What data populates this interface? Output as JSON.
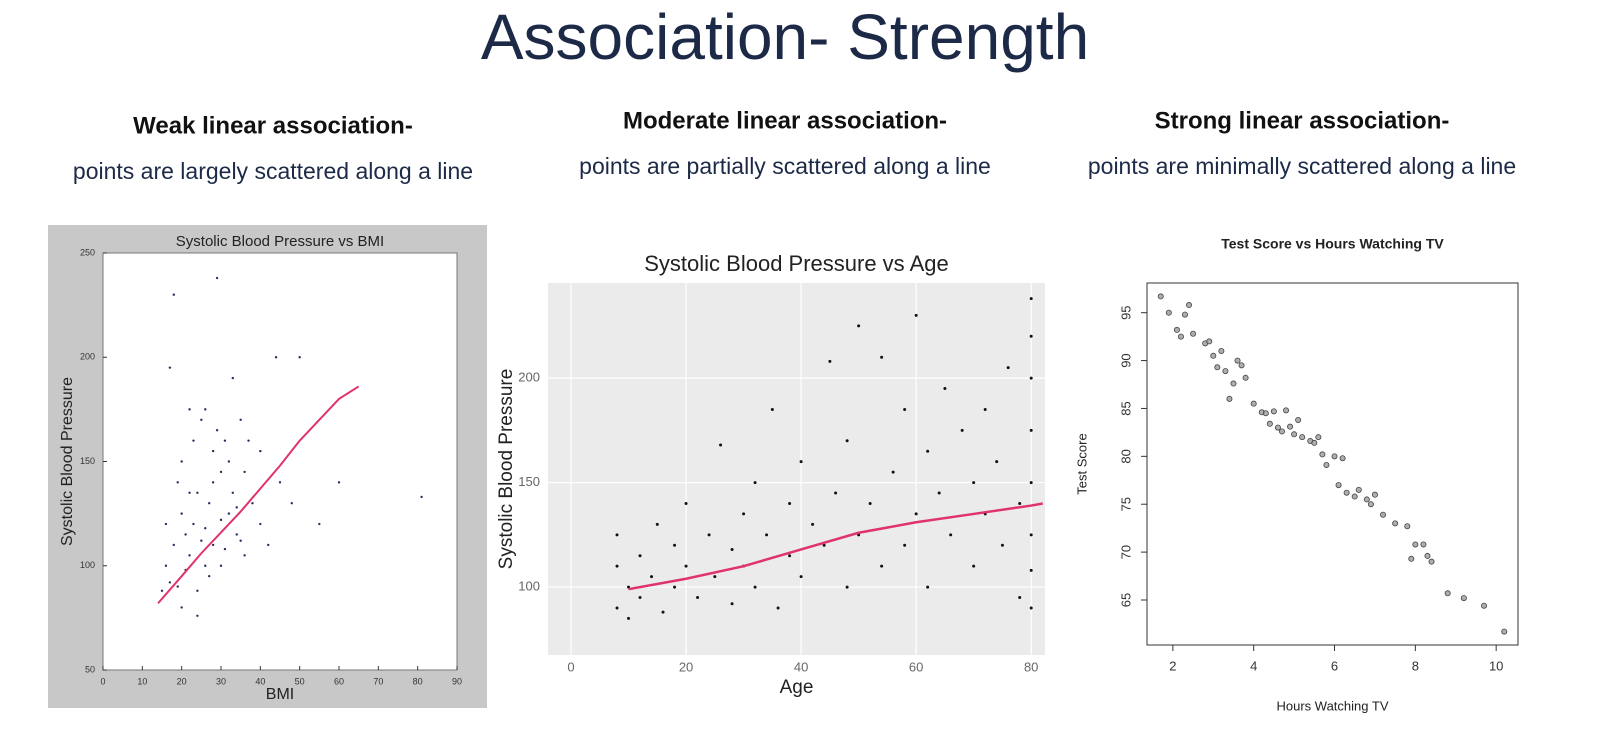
{
  "title": "Association- Strength",
  "panels": [
    {
      "heading": "Weak linear association-",
      "description": "points are largely scattered along a line"
    },
    {
      "heading": "Moderate linear association-",
      "description": "points are partially scattered along a line"
    },
    {
      "heading": "Strong linear association-",
      "description": "points are minimally scattered along a line"
    }
  ],
  "chart_data": [
    {
      "type": "scatter",
      "title": "Systolic Blood Pressure vs BMI",
      "xlabel": "BMI",
      "ylabel": "Systolic Blood Pressure",
      "xlim": [
        0,
        90
      ],
      "ylim": [
        50,
        250
      ],
      "xticks": [
        0,
        10,
        20,
        30,
        40,
        50,
        60,
        70,
        80,
        90
      ],
      "yticks": [
        50,
        100,
        150,
        200,
        250
      ],
      "grid": false,
      "series": [
        {
          "type": "scatter",
          "color": "#2e2e5e",
          "x": [
            16,
            18,
            20,
            22,
            24,
            26,
            28,
            30,
            32,
            34,
            36,
            38,
            40,
            17,
            19,
            21,
            23,
            25,
            27,
            29,
            31,
            33,
            35,
            37,
            15,
            20,
            25,
            30,
            35,
            40,
            45,
            18,
            22,
            26,
            30,
            34,
            19,
            23,
            27,
            31,
            16,
            21,
            24,
            28,
            32,
            36,
            42,
            48,
            55,
            60,
            81,
            17,
            29,
            33,
            44,
            50,
            20,
            24,
            26,
            22,
            28
          ],
          "values": [
            100,
            110,
            125,
            105,
            135,
            118,
            140,
            122,
            150,
            128,
            145,
            130,
            155,
            92,
            140,
            98,
            160,
            112,
            95,
            165,
            108,
            135,
            112,
            160,
            88,
            150,
            170,
            100,
            170,
            120,
            140,
            230,
            175,
            100,
            145,
            115,
            90,
            120,
            130,
            160,
            120,
            115,
            88,
            110,
            125,
            105,
            110,
            130,
            120,
            140,
            133,
            195,
            238,
            190,
            200,
            200,
            80,
            76,
            175,
            135,
            155
          ]
        },
        {
          "type": "line",
          "color": "#e0336b",
          "x": [
            14,
            20,
            25,
            30,
            35,
            40,
            45,
            50,
            55,
            60,
            65
          ],
          "values": [
            82,
            95,
            106,
            116,
            126,
            137,
            148,
            160,
            170,
            180,
            186
          ]
        }
      ]
    },
    {
      "type": "scatter",
      "title": "Systolic Blood Pressure vs Age",
      "xlabel": "Age",
      "ylabel": "Systolic Blood Pressure",
      "xlim": [
        -4,
        82.4
      ],
      "ylim": [
        67.5,
        245.5
      ],
      "xticks": [
        0,
        20,
        40,
        60,
        80
      ],
      "yticks": [
        100,
        150,
        200
      ],
      "grid": true,
      "series": [
        {
          "type": "scatter",
          "color": "#111111",
          "x": [
            8,
            8,
            8,
            10,
            10,
            12,
            12,
            14,
            15,
            16,
            18,
            18,
            20,
            20,
            22,
            24,
            25,
            26,
            28,
            28,
            30,
            30,
            32,
            32,
            34,
            35,
            36,
            38,
            38,
            40,
            40,
            42,
            44,
            45,
            46,
            48,
            48,
            50,
            50,
            52,
            54,
            54,
            56,
            58,
            58,
            60,
            60,
            62,
            62,
            64,
            65,
            66,
            68,
            70,
            70,
            72,
            72,
            74,
            75,
            76,
            78,
            78,
            80,
            80,
            80,
            80,
            80,
            80,
            80,
            80
          ],
          "values": [
            90,
            110,
            125,
            85,
            100,
            115,
            95,
            105,
            130,
            88,
            120,
            100,
            110,
            140,
            95,
            125,
            105,
            168,
            118,
            92,
            135,
            110,
            100,
            150,
            125,
            185,
            90,
            140,
            115,
            105,
            160,
            130,
            120,
            208,
            145,
            100,
            170,
            125,
            225,
            140,
            110,
            210,
            155,
            120,
            185,
            135,
            230,
            100,
            165,
            145,
            195,
            125,
            175,
            110,
            150,
            135,
            185,
            160,
            120,
            205,
            140,
            95,
            125,
            150,
            175,
            200,
            238,
            90,
            108,
            220
          ]
        },
        {
          "type": "line",
          "color": "#e0336b",
          "x": [
            10,
            20,
            30,
            40,
            50,
            60,
            70,
            80,
            82
          ],
          "values": [
            99,
            104,
            110,
            118,
            126,
            131,
            135,
            139,
            140
          ]
        }
      ]
    },
    {
      "type": "scatter",
      "title": "Test Score vs Hours Watching TV",
      "xlabel": "Hours Watching TV",
      "ylabel": "Test Score",
      "xlim": [
        1.36,
        10.54
      ],
      "ylim": [
        60.3,
        98.1
      ],
      "xticks": [
        2,
        4,
        6,
        8,
        10
      ],
      "yticks": [
        65,
        70,
        75,
        80,
        85,
        90,
        95
      ],
      "grid": false,
      "series": [
        {
          "type": "scatter",
          "color": "#444444",
          "x": [
            1.7,
            1.9,
            2.1,
            2.2,
            2.3,
            2.4,
            2.5,
            2.8,
            2.9,
            3.0,
            3.1,
            3.2,
            3.3,
            3.5,
            3.6,
            3.7,
            3.8,
            3.4,
            4.0,
            4.2,
            4.3,
            4.4,
            4.5,
            4.6,
            4.7,
            4.8,
            4.9,
            5.0,
            5.1,
            5.2,
            5.4,
            5.5,
            5.6,
            5.7,
            5.8,
            6.0,
            6.1,
            6.2,
            6.3,
            6.5,
            6.6,
            6.8,
            6.9,
            7.0,
            7.2,
            7.5,
            7.8,
            7.9,
            8.0,
            8.2,
            8.3,
            8.4,
            8.8,
            9.2,
            9.7,
            10.2
          ],
          "values": [
            96.7,
            95,
            93.2,
            92.5,
            94.8,
            95.8,
            92.8,
            91.8,
            92,
            90.5,
            89.3,
            91,
            88.9,
            87.6,
            90,
            89.5,
            88.2,
            86,
            85.5,
            84.6,
            84.5,
            83.4,
            84.7,
            83,
            82.6,
            84.8,
            83.1,
            82.3,
            83.8,
            82,
            81.6,
            81.4,
            82,
            80.2,
            79.1,
            80,
            77,
            79.8,
            76.2,
            75.8,
            76.5,
            75.5,
            75,
            76,
            73.9,
            73,
            72.7,
            69.3,
            70.8,
            70.8,
            69.6,
            69,
            65.7,
            65.2,
            64.4,
            61.7
          ]
        }
      ]
    }
  ]
}
